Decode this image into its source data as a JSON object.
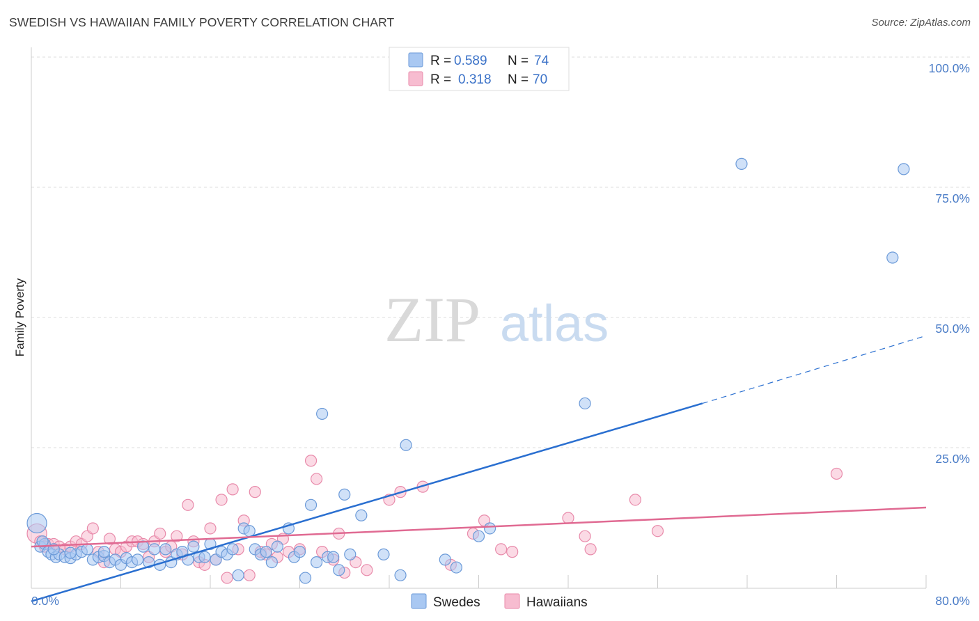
{
  "title": "SWEDISH VS HAWAIIAN FAMILY POVERTY CORRELATION CHART",
  "source": "Source: ZipAtlas.com",
  "watermark": {
    "zip": "ZIP",
    "atlas": "atlas"
  },
  "colors": {
    "swedes_fill": "#a9c8f2",
    "swedes_stroke": "#6b9ad8",
    "swedes_line": "#2a6fd0",
    "hawaiians_fill": "#f7bcd0",
    "hawaiians_stroke": "#e88aaa",
    "hawaiians_line": "#e06a92",
    "axis_label": "#4a7cc7",
    "grid": "#dddddd"
  },
  "legend_top": [
    {
      "r_label": "R =",
      "r_value": "0.589",
      "n_label": "N =",
      "n_value": "74"
    },
    {
      "r_label": "R =",
      "r_value": "0.318",
      "n_label": "N =",
      "n_value": "70"
    }
  ],
  "chart_data": {
    "type": "scatter",
    "title": "SWEDISH VS HAWAIIAN FAMILY POVERTY CORRELATION CHART",
    "xlabel": "",
    "ylabel": "Family Poverty",
    "xlim": [
      0,
      80
    ],
    "ylim": [
      0,
      100
    ],
    "x_tick_labels": [
      "0.0%",
      "80.0%"
    ],
    "y_tick_labels": [
      "100.0%",
      "75.0%",
      "50.0%",
      "25.0%"
    ],
    "y_ticks": [
      100,
      75,
      50,
      25
    ],
    "legend_position": "top-center",
    "grid": true,
    "series": [
      {
        "name": "Swedes",
        "points": [
          [
            0.5,
            12.5
          ],
          [
            0.8,
            8.0
          ],
          [
            1.2,
            8.5
          ],
          [
            1.5,
            7.0
          ],
          [
            1.8,
            6.5
          ],
          [
            2.2,
            6.0
          ],
          [
            2.5,
            6.5
          ],
          [
            3.0,
            6.0
          ],
          [
            3.5,
            5.8
          ],
          [
            4.0,
            6.5
          ],
          [
            4.5,
            7.0
          ],
          [
            5.0,
            7.5
          ],
          [
            5.5,
            5.5
          ],
          [
            6.0,
            6.0
          ],
          [
            6.5,
            6.2
          ],
          [
            7.0,
            5.0
          ],
          [
            7.5,
            5.5
          ],
          [
            8.0,
            4.5
          ],
          [
            8.5,
            5.8
          ],
          [
            9.0,
            5.0
          ],
          [
            9.5,
            5.5
          ],
          [
            10.0,
            8.0
          ],
          [
            10.5,
            5.0
          ],
          [
            11.0,
            7.5
          ],
          [
            11.5,
            4.5
          ],
          [
            12.0,
            7.5
          ],
          [
            12.5,
            5.0
          ],
          [
            13.0,
            6.5
          ],
          [
            13.5,
            7.0
          ],
          [
            14.0,
            5.5
          ],
          [
            14.5,
            8.0
          ],
          [
            15.0,
            6.0
          ],
          [
            15.5,
            6.0
          ],
          [
            16.0,
            8.5
          ],
          [
            16.5,
            5.5
          ],
          [
            17.0,
            7.0
          ],
          [
            17.5,
            6.5
          ],
          [
            18.0,
            7.5
          ],
          [
            18.5,
            2.5
          ],
          [
            19.0,
            11.5
          ],
          [
            19.5,
            11.0
          ],
          [
            20.0,
            7.5
          ],
          [
            20.5,
            6.5
          ],
          [
            21.0,
            7.0
          ],
          [
            21.5,
            5.0
          ],
          [
            22.0,
            8.0
          ],
          [
            23.0,
            11.5
          ],
          [
            23.5,
            6.0
          ],
          [
            24.0,
            7.0
          ],
          [
            24.5,
            2.0
          ],
          [
            25.0,
            16.0
          ],
          [
            25.5,
            5.0
          ],
          [
            26.0,
            33.5
          ],
          [
            26.5,
            6.0
          ],
          [
            27.0,
            6.0
          ],
          [
            27.5,
            3.5
          ],
          [
            28.0,
            18.0
          ],
          [
            28.5,
            6.5
          ],
          [
            29.5,
            14.0
          ],
          [
            31.5,
            6.5
          ],
          [
            33.0,
            2.5
          ],
          [
            33.5,
            27.5
          ],
          [
            37.0,
            5.5
          ],
          [
            38.0,
            4.0
          ],
          [
            40.0,
            10.0
          ],
          [
            41.0,
            11.5
          ],
          [
            49.5,
            35.5
          ],
          [
            63.5,
            81.5
          ],
          [
            77.0,
            63.5
          ],
          [
            78.0,
            80.5
          ],
          [
            1.0,
            9.0
          ],
          [
            2.0,
            7.5
          ],
          [
            3.5,
            6.8
          ],
          [
            6.5,
            7.0
          ]
        ],
        "trend": {
          "x0": 0,
          "y0": -2.5,
          "x1": 60,
          "y1": 35.5,
          "dash_to_x": 80,
          "dash_to_y": 48.5
        }
      },
      {
        "name": "Hawaiians",
        "points": [
          [
            0.5,
            10.5
          ],
          [
            0.8,
            9.0
          ],
          [
            1.5,
            8.5
          ],
          [
            2.0,
            8.5
          ],
          [
            2.5,
            8.0
          ],
          [
            3.0,
            7.5
          ],
          [
            3.5,
            8.0
          ],
          [
            4.0,
            9.0
          ],
          [
            4.5,
            8.5
          ],
          [
            5.0,
            10.0
          ],
          [
            5.5,
            11.5
          ],
          [
            6.0,
            7.0
          ],
          [
            6.5,
            5.0
          ],
          [
            7.0,
            9.5
          ],
          [
            7.5,
            7.5
          ],
          [
            8.0,
            7.0
          ],
          [
            8.5,
            8.0
          ],
          [
            9.0,
            9.0
          ],
          [
            9.5,
            9.0
          ],
          [
            10.0,
            8.5
          ],
          [
            10.5,
            6.0
          ],
          [
            11.0,
            9.0
          ],
          [
            11.5,
            10.5
          ],
          [
            12.0,
            7.0
          ],
          [
            12.5,
            8.0
          ],
          [
            13.0,
            10.0
          ],
          [
            13.5,
            6.5
          ],
          [
            14.0,
            16.0
          ],
          [
            14.5,
            9.0
          ],
          [
            15.0,
            5.0
          ],
          [
            15.5,
            4.5
          ],
          [
            16.0,
            11.5
          ],
          [
            16.5,
            5.5
          ],
          [
            17.0,
            17.0
          ],
          [
            17.5,
            2.0
          ],
          [
            18.0,
            19.0
          ],
          [
            18.5,
            7.5
          ],
          [
            19.0,
            13.0
          ],
          [
            19.5,
            2.5
          ],
          [
            20.0,
            18.5
          ],
          [
            20.5,
            7.0
          ],
          [
            21.0,
            6.5
          ],
          [
            21.5,
            8.5
          ],
          [
            22.0,
            6.0
          ],
          [
            22.5,
            9.5
          ],
          [
            23.0,
            7.0
          ],
          [
            24.0,
            7.5
          ],
          [
            25.0,
            24.5
          ],
          [
            25.5,
            21.0
          ],
          [
            26.0,
            7.0
          ],
          [
            27.0,
            5.5
          ],
          [
            27.5,
            10.5
          ],
          [
            28.0,
            3.0
          ],
          [
            29.0,
            5.0
          ],
          [
            30.0,
            3.5
          ],
          [
            32.0,
            17.0
          ],
          [
            33.0,
            18.5
          ],
          [
            35.0,
            19.5
          ],
          [
            37.5,
            4.5
          ],
          [
            39.5,
            10.5
          ],
          [
            40.5,
            13.0
          ],
          [
            42.0,
            7.5
          ],
          [
            43.0,
            7.0
          ],
          [
            48.0,
            13.5
          ],
          [
            49.5,
            10.0
          ],
          [
            50.0,
            7.5
          ],
          [
            54.0,
            17.0
          ],
          [
            56.0,
            11.0
          ],
          [
            72.0,
            22.0
          ],
          [
            1.2,
            8.0
          ]
        ],
        "trend": {
          "x0": 0,
          "y0": 8.0,
          "x1": 80,
          "y1": 15.5
        }
      }
    ]
  }
}
